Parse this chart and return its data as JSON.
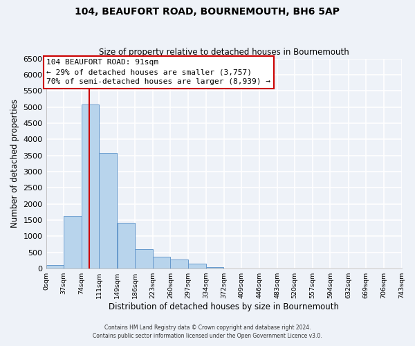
{
  "title": "104, BEAUFORT ROAD, BOURNEMOUTH, BH6 5AP",
  "subtitle": "Size of property relative to detached houses in Bournemouth",
  "xlabel": "Distribution of detached houses by size in Bournemouth",
  "ylabel": "Number of detached properties",
  "bar_color": "#b8d4ec",
  "bar_edge_color": "#6699cc",
  "bin_labels": [
    "0sqm",
    "37sqm",
    "74sqm",
    "111sqm",
    "149sqm",
    "186sqm",
    "223sqm",
    "260sqm",
    "297sqm",
    "334sqm",
    "372sqm",
    "409sqm",
    "446sqm",
    "483sqm",
    "520sqm",
    "557sqm",
    "594sqm",
    "632sqm",
    "669sqm",
    "706sqm",
    "743sqm"
  ],
  "bar_heights": [
    100,
    1620,
    5070,
    3580,
    1420,
    610,
    370,
    280,
    150,
    50,
    0,
    0,
    0,
    0,
    0,
    0,
    0,
    0,
    0,
    0,
    0
  ],
  "ylim": [
    0,
    6500
  ],
  "yticks": [
    0,
    500,
    1000,
    1500,
    2000,
    2500,
    3000,
    3500,
    4000,
    4500,
    5000,
    5500,
    6000,
    6500
  ],
  "property_line_x": 91,
  "bin_edges": [
    0,
    37,
    74,
    111,
    149,
    186,
    223,
    260,
    297,
    334,
    372,
    409,
    446,
    483,
    520,
    557,
    594,
    632,
    669,
    706,
    743
  ],
  "annotation_title": "104 BEAUFORT ROAD: 91sqm",
  "annotation_line1": "← 29% of detached houses are smaller (3,757)",
  "annotation_line2": "70% of semi-detached houses are larger (8,939) →",
  "annotation_box_color": "#ffffff",
  "annotation_border_color": "#cc0000",
  "red_line_color": "#cc0000",
  "footer1": "Contains HM Land Registry data © Crown copyright and database right 2024.",
  "footer2": "Contains public sector information licensed under the Open Government Licence v3.0.",
  "background_color": "#eef2f8",
  "grid_color": "#ffffff"
}
